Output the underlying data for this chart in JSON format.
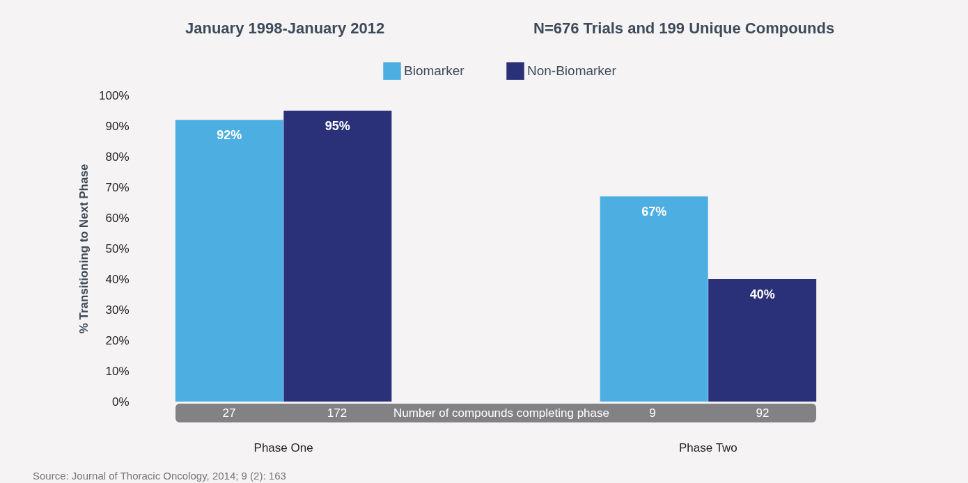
{
  "chart_data": {
    "type": "bar",
    "title": "January 1998-January 2012",
    "subtitle": "N=676 Trials and 199 Unique Compounds",
    "ylabel": "% Transitioning to Next Phase",
    "categories": [
      "Phase One",
      "Phase Two"
    ],
    "series": [
      {
        "name": "Biomarker",
        "color": "#4daee2",
        "values": [
          92,
          67
        ],
        "value_labels": [
          "92%",
          "67%"
        ]
      },
      {
        "name": "Non-Biomarker",
        "color": "#2b3179",
        "values": [
          95,
          40
        ],
        "value_labels": [
          "95%",
          "40%"
        ]
      }
    ],
    "ylim": [
      0,
      100
    ],
    "yticks": [
      {
        "value": 0,
        "label": "0%"
      },
      {
        "value": 10,
        "label": "10%"
      },
      {
        "value": 20,
        "label": "20%"
      },
      {
        "value": 30,
        "label": "30%"
      },
      {
        "value": 40,
        "label": "40%"
      },
      {
        "value": 50,
        "label": "50%"
      },
      {
        "value": 60,
        "label": "60%"
      },
      {
        "value": 70,
        "label": "70%"
      },
      {
        "value": 80,
        "label": "80%"
      },
      {
        "value": 90,
        "label": "90%"
      },
      {
        "value": 100,
        "label": "100%"
      }
    ],
    "grid": false,
    "legend": "top",
    "annotations": [
      "27",
      "172",
      "Number of compounds completing phase",
      "9",
      "92",
      "Source: Journal of Thoracic Oncology, 2014; 9 (2): 163"
    ]
  }
}
